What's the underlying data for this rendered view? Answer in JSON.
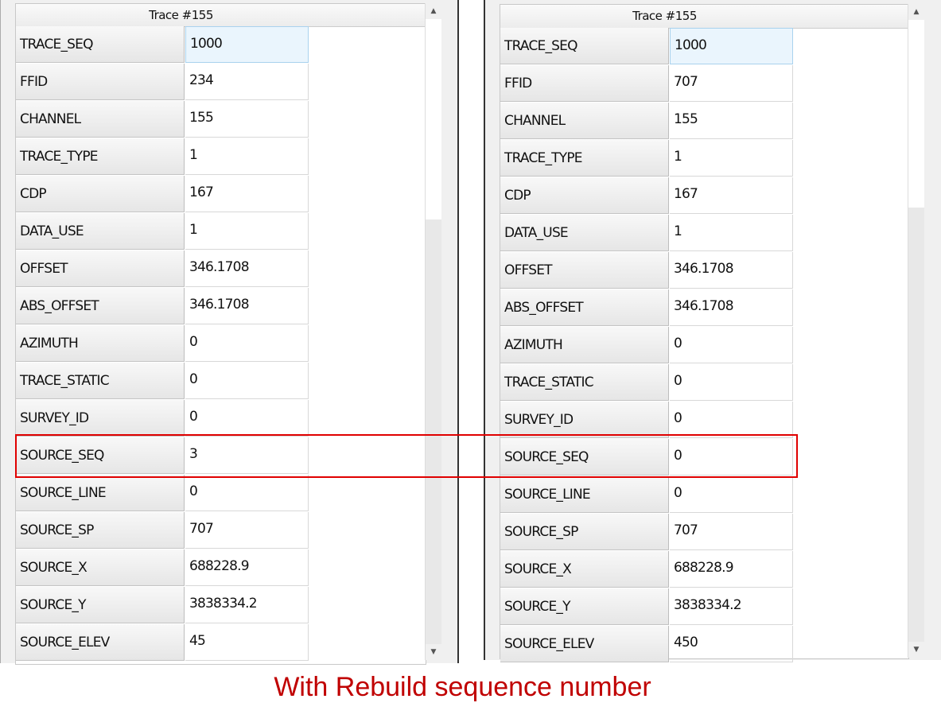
{
  "caption": "With Rebuild sequence number",
  "accent_color": "#c00000",
  "highlight_color": "#e00000",
  "left": {
    "header": "Trace #155",
    "rows": [
      {
        "key": "TRACE_SEQ",
        "value": "1000"
      },
      {
        "key": "FFID",
        "value": "234"
      },
      {
        "key": "CHANNEL",
        "value": "155"
      },
      {
        "key": "TRACE_TYPE",
        "value": "1"
      },
      {
        "key": "CDP",
        "value": "167"
      },
      {
        "key": "DATA_USE",
        "value": "1"
      },
      {
        "key": "OFFSET",
        "value": "346.1708"
      },
      {
        "key": "ABS_OFFSET",
        "value": "346.1708"
      },
      {
        "key": "AZIMUTH",
        "value": "0"
      },
      {
        "key": "TRACE_STATIC",
        "value": "0"
      },
      {
        "key": "SURVEY_ID",
        "value": "0"
      },
      {
        "key": "SOURCE_SEQ",
        "value": "3"
      },
      {
        "key": "SOURCE_LINE",
        "value": "0"
      },
      {
        "key": "SOURCE_SP",
        "value": "707"
      },
      {
        "key": "SOURCE_X",
        "value": "688228.9"
      },
      {
        "key": "SOURCE_Y",
        "value": "3838334.2"
      },
      {
        "key": "SOURCE_ELEV",
        "value": "45"
      }
    ]
  },
  "right": {
    "header": "Trace #155",
    "rows": [
      {
        "key": "TRACE_SEQ",
        "value": "1000"
      },
      {
        "key": "FFID",
        "value": "707"
      },
      {
        "key": "CHANNEL",
        "value": "155"
      },
      {
        "key": "TRACE_TYPE",
        "value": "1"
      },
      {
        "key": "CDP",
        "value": "167"
      },
      {
        "key": "DATA_USE",
        "value": "1"
      },
      {
        "key": "OFFSET",
        "value": "346.1708"
      },
      {
        "key": "ABS_OFFSET",
        "value": "346.1708"
      },
      {
        "key": "AZIMUTH",
        "value": "0"
      },
      {
        "key": "TRACE_STATIC",
        "value": "0"
      },
      {
        "key": "SURVEY_ID",
        "value": "0"
      },
      {
        "key": "SOURCE_SEQ",
        "value": "0"
      },
      {
        "key": "SOURCE_LINE",
        "value": "0"
      },
      {
        "key": "SOURCE_SP",
        "value": "707"
      },
      {
        "key": "SOURCE_X",
        "value": "688228.9"
      },
      {
        "key": "SOURCE_Y",
        "value": "3838334.2"
      },
      {
        "key": "SOURCE_ELEV",
        "value": "450"
      }
    ]
  }
}
